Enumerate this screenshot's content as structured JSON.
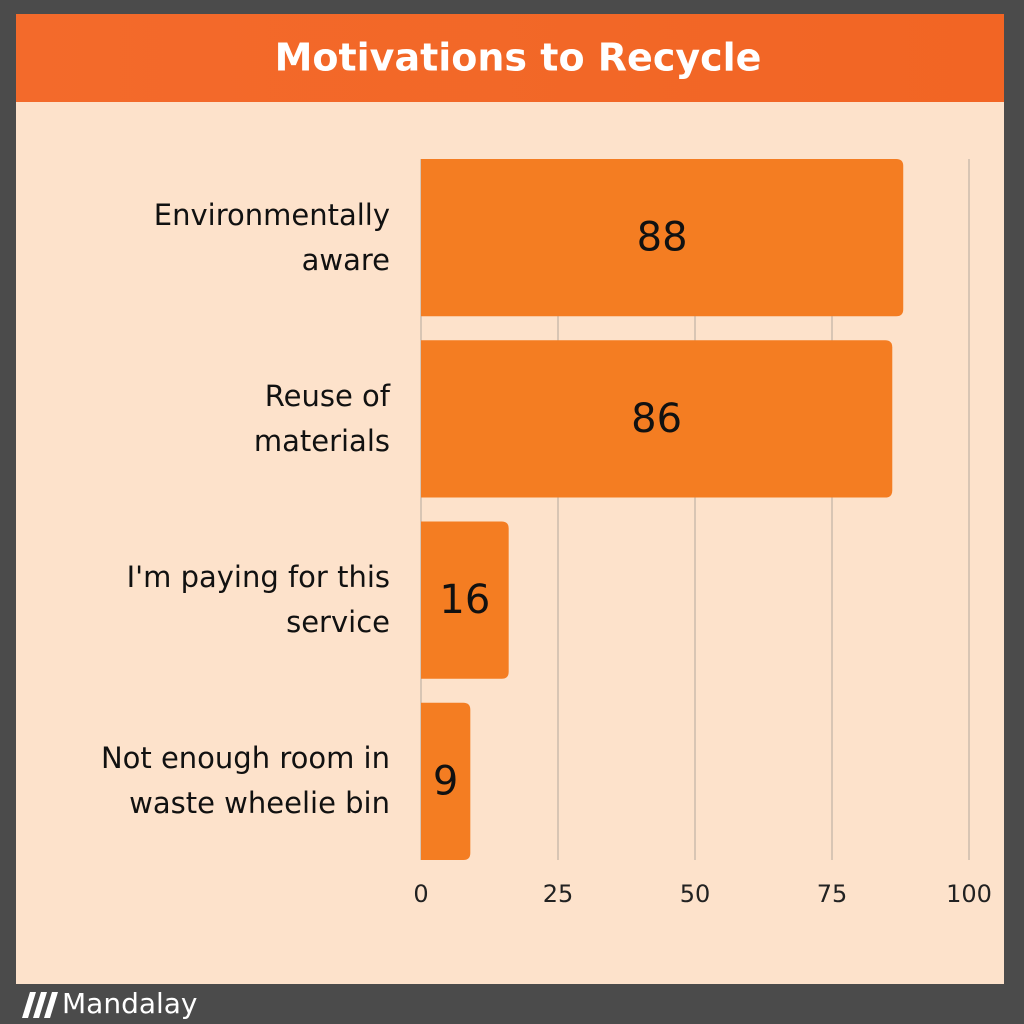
{
  "chart_data": {
    "type": "barh",
    "title": "Motivations to Recycle",
    "categories": [
      "Environmentally\naware",
      "Reuse of\nmaterials",
      "I'm paying for this\nservice",
      "Not enough room in\nwaste wheelie bin"
    ],
    "values": [
      88,
      86,
      16,
      9
    ],
    "color": "#f47d22",
    "xlim": [
      0,
      100
    ],
    "xticks": [
      0,
      25,
      50,
      75,
      100
    ],
    "grid": true
  },
  "footer": {
    "brand": "Mandalay"
  }
}
